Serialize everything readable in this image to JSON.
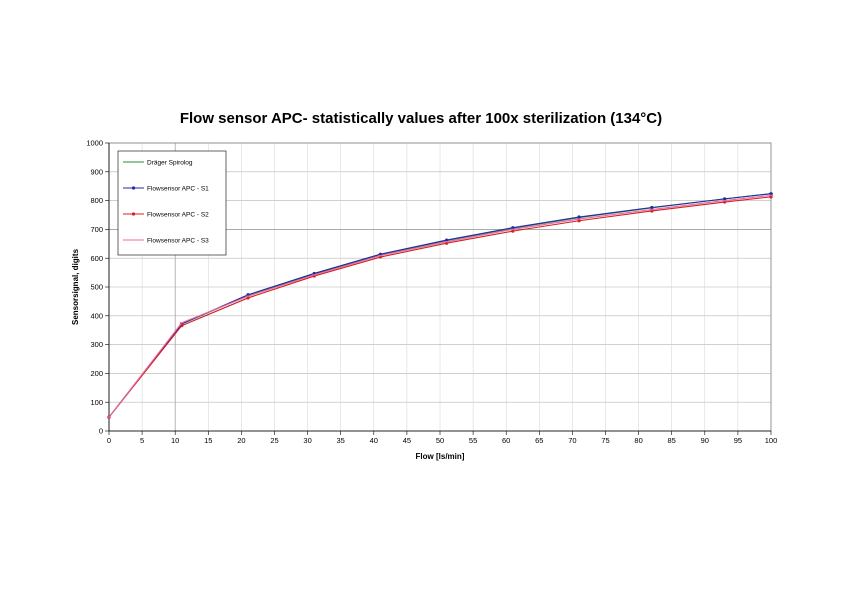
{
  "chart_data": {
    "type": "line",
    "title": "Flow sensor APC- statistically values after 100x sterilization (134°C)",
    "xlabel": "Flow [ls/min]",
    "ylabel": "Sensorsignal, digits",
    "xlim": [
      0,
      100
    ],
    "ylim": [
      0,
      1000
    ],
    "xticks": [
      "0",
      "5",
      "10",
      "15",
      "20",
      "25",
      "30",
      "35",
      "40",
      "45",
      "50",
      "55",
      "60",
      "65",
      "70",
      "75",
      "80",
      "85",
      "90",
      "95",
      "100"
    ],
    "yticks": [
      "0",
      "100",
      "200",
      "300",
      "400",
      "500",
      "600",
      "700",
      "800",
      "900",
      "1000"
    ],
    "grid": true,
    "legend_position": "top-left",
    "series": [
      {
        "name": "Dräger Spirolog",
        "color": "#2e8b3a",
        "marker": "dash",
        "x": [
          0,
          11,
          21,
          31,
          41,
          51,
          61,
          71,
          82,
          93,
          100
        ],
        "y": [
          48,
          372,
          470,
          545,
          612,
          661,
          704,
          741,
          775,
          806,
          824
        ]
      },
      {
        "name": "Flowsensor APC - S1",
        "color": "#1f2fa0",
        "marker": "dot",
        "x": [
          0,
          11,
          21,
          31,
          41,
          51,
          61,
          71,
          82,
          93,
          100
        ],
        "y": [
          48,
          372,
          473,
          547,
          614,
          663,
          706,
          743,
          776,
          806,
          824
        ]
      },
      {
        "name": "Flowsensor APC - S2",
        "color": "#d42020",
        "marker": "dot",
        "x": [
          0,
          11,
          21,
          31,
          41,
          51,
          61,
          71,
          82,
          93,
          100
        ],
        "y": [
          48,
          366,
          462,
          538,
          604,
          652,
          694,
          730,
          764,
          795,
          813
        ]
      },
      {
        "name": "Flowsensor APC - S3",
        "color": "#e86aa8",
        "marker": "dash",
        "x": [
          0,
          11,
          21,
          31,
          41,
          51,
          61,
          71,
          82,
          93,
          100
        ],
        "y": [
          48,
          376,
          468,
          542,
          609,
          657,
          700,
          736,
          769,
          800,
          818
        ]
      }
    ]
  }
}
